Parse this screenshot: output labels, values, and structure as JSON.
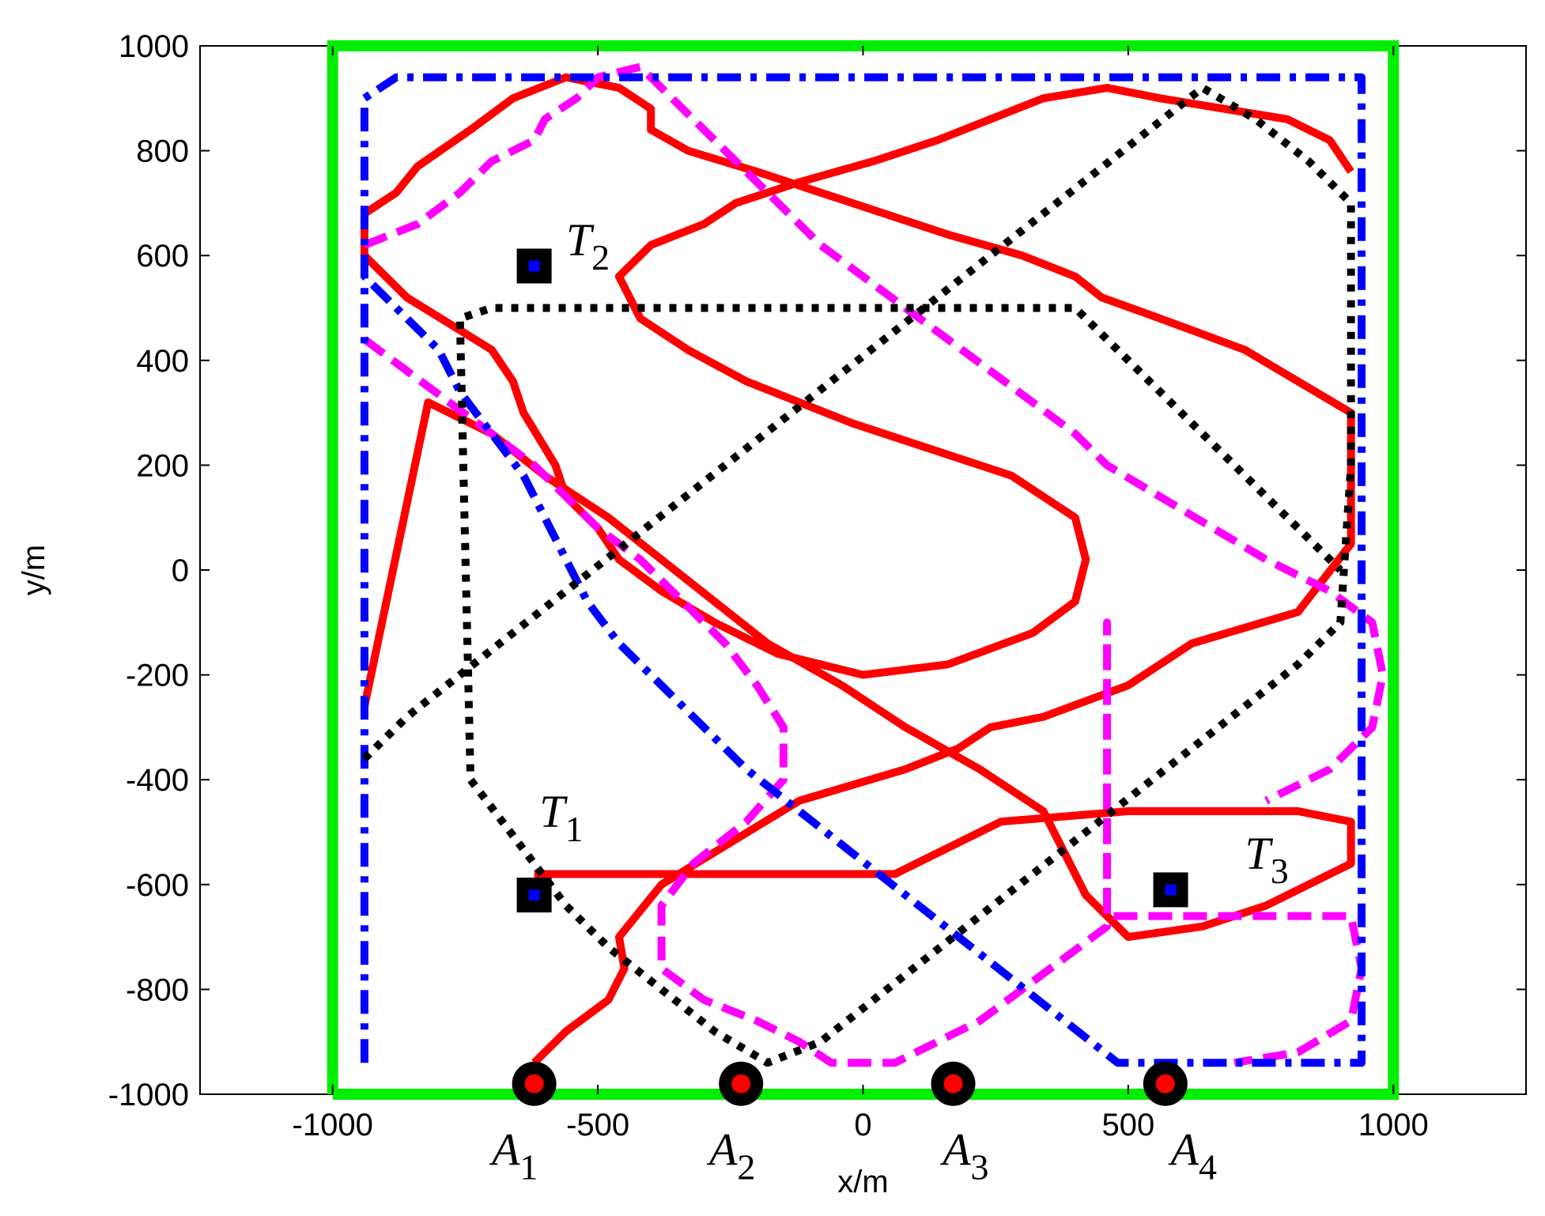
{
  "chart_data": {
    "type": "line",
    "title": "",
    "xlabel": "x/m",
    "ylabel": "y/m",
    "xlim": [
      -1250,
      1250
    ],
    "ylim": [
      -1000,
      1000
    ],
    "xticks": [
      -1000,
      -500,
      0,
      500,
      1000
    ],
    "yticks": [
      -1000,
      -800,
      -600,
      -400,
      -200,
      0,
      200,
      400,
      600,
      800,
      1000
    ],
    "xtick_labels": [
      "-1000",
      "-500",
      "0",
      "500",
      "1000"
    ],
    "ytick_labels": [
      "-1000",
      "-800",
      "-600",
      "-400",
      "-200",
      "0",
      "200",
      "400",
      "600",
      "800",
      "1000"
    ],
    "grid": false,
    "legend": "none",
    "boundary": {
      "color": "#00ee00",
      "x": [
        -1000,
        1000,
        1000,
        -1000,
        -1000
      ],
      "y": [
        -1000,
        -1000,
        1000,
        1000,
        -1000
      ]
    },
    "series": [
      {
        "color": "#ff0000",
        "style": "solid",
        "x": [
          -620,
          -560,
          -480,
          -450,
          -460,
          -380,
          -250,
          -120,
          80,
          180,
          240,
          340,
          500,
          620,
          820,
          920,
          920,
          720,
          560,
          450,
          400,
          300,
          160,
          -20,
          -200,
          -330,
          -400,
          -400,
          -460,
          -560,
          -660,
          -740,
          -840,
          -880,
          -940,
          -940,
          -860,
          -700,
          -660,
          -640,
          -580,
          -560,
          -500,
          -460,
          -380,
          -280,
          -160,
          0,
          160,
          320,
          400,
          420,
          400,
          280,
          100,
          -20,
          -120,
          -220,
          -330,
          -420,
          -460,
          -400,
          -300,
          -240,
          -120,
          20,
          140,
          240,
          340,
          460,
          560,
          680,
          800,
          880,
          920
        ],
        "y": [
          -940,
          -880,
          -820,
          -760,
          -700,
          -600,
          -520,
          -440,
          -380,
          -340,
          -300,
          -280,
          -220,
          -140,
          -80,
          50,
          300,
          420,
          480,
          520,
          560,
          600,
          640,
          700,
          760,
          800,
          840,
          880,
          920,
          940,
          900,
          840,
          770,
          720,
          680,
          600,
          520,
          420,
          360,
          300,
          200,
          140,
          80,
          20,
          -40,
          -100,
          -160,
          -200,
          -180,
          -120,
          -60,
          20,
          100,
          180,
          240,
          280,
          320,
          360,
          420,
          480,
          560,
          620,
          660,
          700,
          740,
          780,
          820,
          860,
          900,
          920,
          900,
          880,
          860,
          820,
          760
        ]
      },
      {
        "color": "#ff0000",
        "style": "solid",
        "x": [
          -620,
          -500,
          -300,
          -100,
          60,
          100,
          180,
          260,
          500,
          820,
          920,
          920,
          840,
          760,
          640,
          500,
          420,
          380,
          340,
          220,
          80,
          -40,
          -180,
          -280,
          -380,
          -480,
          -600,
          -700,
          -820,
          -940
        ],
        "y": [
          -580,
          -580,
          -580,
          -580,
          -580,
          -560,
          -520,
          -480,
          -460,
          -460,
          -480,
          -560,
          -600,
          -640,
          -680,
          -700,
          -620,
          -540,
          -460,
          -380,
          -300,
          -220,
          -140,
          -60,
          20,
          100,
          180,
          260,
          320,
          -260
        ]
      },
      {
        "color": "#ff00ff",
        "style": "dashed",
        "x": [
          -940,
          -840,
          -760,
          -700,
          -620,
          -600,
          -540,
          -500,
          -420,
          -380,
          -320,
          -260,
          -200,
          -140,
          -80,
          0,
          80,
          160,
          240,
          320,
          400,
          460,
          560,
          660,
          760,
          880,
          960,
          980,
          960,
          880,
          760
        ],
        "y": [
          620,
          660,
          720,
          780,
          820,
          860,
          900,
          940,
          960,
          920,
          860,
          800,
          740,
          680,
          620,
          560,
          500,
          440,
          380,
          320,
          260,
          200,
          140,
          80,
          20,
          -40,
          -100,
          -200,
          -300,
          -380,
          -440
        ]
      },
      {
        "color": "#ff00ff",
        "style": "dashed",
        "x": [
          -940,
          -860,
          -780,
          -700,
          -620,
          -560,
          -500,
          -420,
          -340,
          -260,
          -200,
          -150,
          -150,
          -220,
          -320,
          -380,
          -380,
          -300,
          -200,
          -120,
          -60,
          0,
          60,
          140,
          220,
          300,
          380,
          460,
          460,
          460,
          560,
          680,
          800,
          920,
          940,
          920,
          820,
          700
        ],
        "y": [
          440,
          380,
          320,
          260,
          200,
          140,
          80,
          20,
          -60,
          -140,
          -220,
          -300,
          -400,
          -480,
          -560,
          -640,
          -760,
          -820,
          -860,
          -900,
          -940,
          -940,
          -940,
          -900,
          -860,
          -800,
          -740,
          -680,
          -100,
          -660,
          -660,
          -660,
          -660,
          -660,
          -760,
          -860,
          -920,
          -940
        ]
      },
      {
        "color": "#0000ff",
        "style": "dashdot",
        "x": [
          -940,
          -940,
          -940,
          -880,
          -620,
          -400,
          -200,
          0,
          200,
          400,
          600,
          800,
          940,
          940,
          940,
          940,
          880,
          760,
          600,
          480,
          380,
          280,
          180,
          80,
          -20,
          -120,
          -220,
          -300,
          -380,
          -460,
          -520,
          -560,
          -600,
          -640,
          -700,
          -760,
          -800,
          -880,
          -940
        ],
        "y": [
          -940,
          0,
          900,
          940,
          940,
          940,
          940,
          940,
          940,
          940,
          940,
          940,
          940,
          0,
          -120,
          -940,
          -940,
          -940,
          -940,
          -940,
          -860,
          -780,
          -700,
          -620,
          -540,
          -460,
          -380,
          -300,
          -220,
          -140,
          -60,
          20,
          100,
          180,
          260,
          340,
          420,
          500,
          560
        ]
      },
      {
        "color": "#000000",
        "style": "dotted",
        "x": [
          -940,
          -860,
          -760,
          -660,
          -560,
          -460,
          -360,
          -260,
          -160,
          -60,
          40,
          140,
          240,
          340,
          440,
          540,
          640,
          740,
          840,
          920,
          920,
          900,
          820,
          720,
          620,
          520,
          420,
          320,
          220,
          120,
          20,
          -80,
          -180,
          -280,
          -380,
          -480,
          -560,
          -620,
          -680,
          -740,
          -760,
          -700,
          -600,
          -500,
          -400,
          -300,
          -200,
          -100,
          0,
          100,
          200,
          300,
          400,
          500,
          600,
          700,
          800,
          900
        ],
        "y": [
          -360,
          -280,
          -200,
          -120,
          -40,
          40,
          120,
          200,
          280,
          360,
          440,
          520,
          600,
          680,
          760,
          840,
          920,
          860,
          780,
          700,
          200,
          -100,
          -180,
          -260,
          -340,
          -420,
          -500,
          -580,
          -660,
          -740,
          -820,
          -900,
          -940,
          -880,
          -800,
          -720,
          -640,
          -560,
          -480,
          -400,
          480,
          500,
          500,
          500,
          500,
          500,
          500,
          500,
          500,
          500,
          500,
          500,
          500,
          400,
          300,
          200,
          100,
          0
        ]
      }
    ],
    "annotations": [
      {
        "label": "T",
        "sub": "1",
        "marker": "square",
        "x": -620,
        "y": -620,
        "label_x": -610,
        "label_y": -490
      },
      {
        "label": "T",
        "sub": "2",
        "marker": "square",
        "x": -620,
        "y": 580,
        "label_x": -560,
        "label_y": 600
      },
      {
        "label": "T",
        "sub": "3",
        "marker": "square",
        "x": 580,
        "y": -610,
        "label_x": 720,
        "label_y": -570
      },
      {
        "label": "A",
        "sub": "1",
        "marker": "circle",
        "x": -620,
        "y": -980,
        "label_x": -700,
        "label_y": -1135
      },
      {
        "label": "A",
        "sub": "2",
        "marker": "circle",
        "x": -230,
        "y": -980,
        "label_x": -290,
        "label_y": -1135
      },
      {
        "label": "A",
        "sub": "3",
        "marker": "circle",
        "x": 170,
        "y": -980,
        "label_x": 150,
        "label_y": -1135
      },
      {
        "label": "A",
        "sub": "4",
        "marker": "circle",
        "x": 570,
        "y": -980,
        "label_x": 580,
        "label_y": -1135
      }
    ]
  }
}
